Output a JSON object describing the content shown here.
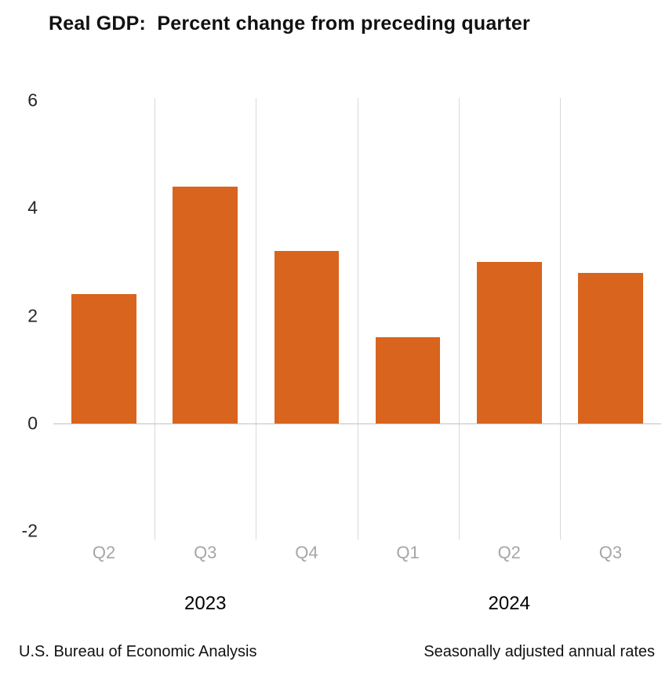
{
  "title": "Real GDP:  Percent change from preceding quarter",
  "chart_data": {
    "type": "bar",
    "categories": [
      "Q2",
      "Q3",
      "Q4",
      "Q1",
      "Q2",
      "Q3"
    ],
    "values": [
      2.4,
      4.4,
      3.2,
      1.6,
      3.0,
      2.8
    ],
    "year_groups": [
      {
        "label": "2023",
        "slots": [
          0,
          1,
          2
        ]
      },
      {
        "label": "2024",
        "slots": [
          3,
          4,
          5
        ]
      }
    ],
    "title": "Real GDP:  Percent change from preceding quarter",
    "xlabel": "",
    "ylabel": "",
    "ylim": [
      -2,
      6
    ],
    "yticks": [
      6,
      4,
      2,
      0,
      -2
    ],
    "bar_color": "#d9641e",
    "gridline_color": "#d9d9d9",
    "grid": "vertical-between-categories",
    "legend": "none"
  },
  "footer": {
    "left": "U.S. Bureau of Economic Analysis",
    "right": "Seasonally adjusted annual rates"
  }
}
